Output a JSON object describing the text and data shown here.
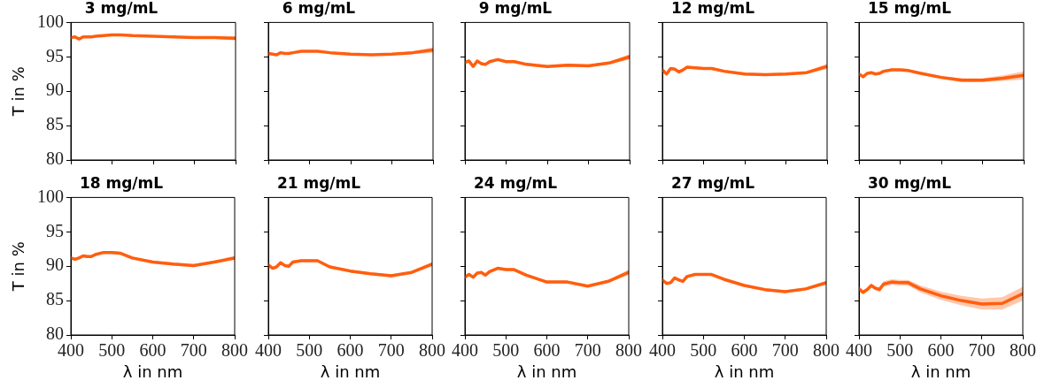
{
  "chart_data": [
    {
      "type": "line",
      "title": "3 mg/mL",
      "ylabel": "T in %",
      "tick_labels": "y",
      "xlim": [
        400,
        800
      ],
      "ylim": [
        80,
        100
      ],
      "xticks": [
        400,
        500,
        600,
        700,
        800
      ],
      "yticks": [
        80,
        85,
        90,
        95,
        100
      ],
      "x": [
        400,
        410,
        420,
        430,
        440,
        450,
        460,
        480,
        500,
        520,
        550,
        600,
        650,
        700,
        750,
        800
      ],
      "series": [
        {
          "color": "#ff5f0f",
          "values": [
            97.8,
            97.9,
            97.6,
            97.9,
            97.9,
            97.9,
            98.0,
            98.1,
            98.2,
            98.2,
            98.1,
            98.0,
            97.9,
            97.8,
            97.8,
            97.7
          ],
          "lower": [
            97.7,
            97.8,
            97.5,
            97.8,
            97.8,
            97.8,
            97.9,
            98.0,
            98.1,
            98.1,
            98.0,
            97.9,
            97.8,
            97.7,
            97.6,
            97.4
          ],
          "upper": [
            97.9,
            98.0,
            97.7,
            98.0,
            98.0,
            98.0,
            98.1,
            98.2,
            98.3,
            98.3,
            98.2,
            98.1,
            98.0,
            97.9,
            98.0,
            98.0
          ]
        }
      ]
    },
    {
      "type": "line",
      "title": "6 mg/mL",
      "tick_labels": false,
      "xlim": [
        400,
        800
      ],
      "ylim": [
        80,
        100
      ],
      "xticks": [
        400,
        500,
        600,
        700,
        800
      ],
      "yticks": [
        80,
        85,
        90,
        95,
        100
      ],
      "x": [
        400,
        410,
        420,
        430,
        440,
        450,
        460,
        480,
        500,
        520,
        550,
        600,
        650,
        700,
        750,
        800
      ],
      "series": [
        {
          "color": "#ff5f0f",
          "values": [
            95.5,
            95.4,
            95.3,
            95.6,
            95.5,
            95.5,
            95.6,
            95.8,
            95.8,
            95.8,
            95.6,
            95.4,
            95.3,
            95.4,
            95.6,
            96.0
          ],
          "lower": [
            95.4,
            95.3,
            95.2,
            95.5,
            95.4,
            95.4,
            95.5,
            95.7,
            95.7,
            95.7,
            95.5,
            95.3,
            95.2,
            95.3,
            95.4,
            95.6
          ],
          "upper": [
            95.6,
            95.5,
            95.4,
            95.7,
            95.6,
            95.6,
            95.7,
            95.9,
            95.9,
            95.9,
            95.7,
            95.5,
            95.4,
            95.5,
            95.8,
            96.4
          ]
        }
      ]
    },
    {
      "type": "line",
      "title": "9 mg/mL",
      "tick_labels": false,
      "xlim": [
        400,
        800
      ],
      "ylim": [
        80,
        100
      ],
      "xticks": [
        400,
        500,
        600,
        700,
        800
      ],
      "yticks": [
        80,
        85,
        90,
        95,
        100
      ],
      "x": [
        400,
        410,
        420,
        430,
        440,
        450,
        460,
        480,
        500,
        520,
        550,
        600,
        650,
        700,
        750,
        800
      ],
      "series": [
        {
          "color": "#ff5f0f",
          "values": [
            94.2,
            94.4,
            93.6,
            94.4,
            94.0,
            93.9,
            94.3,
            94.6,
            94.3,
            94.3,
            93.9,
            93.6,
            93.8,
            93.7,
            94.1,
            95.0
          ],
          "lower": [
            94.0,
            94.2,
            93.4,
            94.2,
            93.8,
            93.7,
            94.1,
            94.4,
            94.1,
            94.1,
            93.7,
            93.4,
            93.6,
            93.5,
            93.9,
            94.6
          ],
          "upper": [
            94.4,
            94.6,
            93.8,
            94.6,
            94.2,
            94.1,
            94.5,
            94.8,
            94.5,
            94.5,
            94.1,
            93.8,
            94.0,
            93.9,
            94.3,
            95.4
          ]
        }
      ]
    },
    {
      "type": "line",
      "title": "12 mg/mL",
      "tick_labels": false,
      "xlim": [
        400,
        800
      ],
      "ylim": [
        80,
        100
      ],
      "xticks": [
        400,
        500,
        600,
        700,
        800
      ],
      "yticks": [
        80,
        85,
        90,
        95,
        100
      ],
      "x": [
        400,
        410,
        420,
        430,
        440,
        450,
        460,
        480,
        500,
        520,
        550,
        600,
        650,
        700,
        750,
        800
      ],
      "series": [
        {
          "color": "#ff5f0f",
          "values": [
            93.1,
            92.5,
            93.3,
            93.2,
            92.8,
            93.1,
            93.5,
            93.4,
            93.3,
            93.3,
            92.9,
            92.5,
            92.4,
            92.5,
            92.7,
            93.6
          ],
          "lower": [
            92.9,
            92.3,
            93.1,
            93.0,
            92.6,
            92.9,
            93.3,
            93.2,
            93.1,
            93.1,
            92.7,
            92.3,
            92.2,
            92.3,
            92.5,
            93.2
          ],
          "upper": [
            93.3,
            92.7,
            93.5,
            93.4,
            93.0,
            93.3,
            93.7,
            93.6,
            93.5,
            93.5,
            93.1,
            92.7,
            92.6,
            92.7,
            92.9,
            94.0
          ]
        }
      ]
    },
    {
      "type": "line",
      "title": "15 mg/mL",
      "tick_labels": false,
      "xlim": [
        400,
        800
      ],
      "ylim": [
        80,
        100
      ],
      "xticks": [
        400,
        500,
        600,
        700,
        800
      ],
      "yticks": [
        80,
        85,
        90,
        95,
        100
      ],
      "x": [
        400,
        410,
        420,
        430,
        440,
        450,
        460,
        480,
        500,
        520,
        550,
        600,
        650,
        700,
        750,
        800
      ],
      "series": [
        {
          "color": "#ff5f0f",
          "values": [
            92.5,
            92.1,
            92.6,
            92.7,
            92.5,
            92.6,
            92.9,
            93.1,
            93.1,
            93.0,
            92.6,
            92.0,
            91.6,
            91.6,
            91.9,
            92.3
          ],
          "lower": [
            92.3,
            91.9,
            92.4,
            92.5,
            92.3,
            92.4,
            92.7,
            92.9,
            92.9,
            92.8,
            92.4,
            91.8,
            91.3,
            91.3,
            91.5,
            91.7
          ],
          "upper": [
            92.7,
            92.3,
            92.8,
            92.9,
            92.7,
            92.8,
            93.1,
            93.3,
            93.3,
            93.2,
            92.8,
            92.2,
            91.9,
            91.9,
            92.3,
            92.9
          ]
        }
      ]
    },
    {
      "type": "line",
      "title": "18 mg/mL",
      "xlabel": "λ in nm",
      "ylabel": "T in %",
      "xlim": [
        400,
        800
      ],
      "ylim": [
        80,
        100
      ],
      "xticks": [
        400,
        500,
        600,
        700,
        800
      ],
      "yticks": [
        80,
        85,
        90,
        95,
        100
      ],
      "x": [
        400,
        410,
        420,
        430,
        440,
        450,
        460,
        480,
        500,
        520,
        550,
        600,
        650,
        700,
        750,
        800
      ],
      "series": [
        {
          "color": "#ff5f0f",
          "values": [
            91.2,
            91.0,
            91.2,
            91.5,
            91.4,
            91.4,
            91.7,
            92.0,
            92.0,
            91.9,
            91.2,
            90.6,
            90.3,
            90.1,
            90.6,
            91.2
          ],
          "lower": [
            91.0,
            90.8,
            91.0,
            91.3,
            91.2,
            91.2,
            91.5,
            91.8,
            91.8,
            91.7,
            91.0,
            90.4,
            90.1,
            89.9,
            90.4,
            90.9
          ],
          "upper": [
            91.4,
            91.2,
            91.4,
            91.7,
            91.6,
            91.6,
            91.9,
            92.2,
            92.2,
            92.1,
            91.4,
            90.8,
            90.5,
            90.3,
            90.8,
            91.5
          ]
        }
      ]
    },
    {
      "type": "line",
      "title": "21 mg/mL",
      "xlabel": "λ in nm",
      "tick_labels": "x",
      "xlim": [
        400,
        800
      ],
      "ylim": [
        80,
        100
      ],
      "xticks": [
        400,
        500,
        600,
        700,
        800
      ],
      "yticks": [
        80,
        85,
        90,
        95,
        100
      ],
      "x": [
        400,
        410,
        420,
        430,
        440,
        450,
        460,
        480,
        500,
        520,
        550,
        600,
        650,
        700,
        750,
        800
      ],
      "series": [
        {
          "color": "#ff5f0f",
          "values": [
            90.2,
            89.7,
            89.9,
            90.5,
            90.1,
            90.0,
            90.6,
            90.8,
            90.8,
            90.8,
            89.9,
            89.3,
            88.9,
            88.6,
            89.1,
            90.3
          ],
          "lower": [
            90.0,
            89.5,
            89.7,
            90.3,
            89.9,
            89.8,
            90.4,
            90.6,
            90.6,
            90.6,
            89.7,
            89.1,
            88.7,
            88.4,
            88.9,
            90.0
          ],
          "upper": [
            90.4,
            89.9,
            90.1,
            90.7,
            90.3,
            90.2,
            90.8,
            91.0,
            91.0,
            91.0,
            90.1,
            89.5,
            89.1,
            88.8,
            89.3,
            90.6
          ]
        }
      ]
    },
    {
      "type": "line",
      "title": "24 mg/mL",
      "xlabel": "λ in nm",
      "tick_labels": "x",
      "xlim": [
        400,
        800
      ],
      "ylim": [
        80,
        100
      ],
      "xticks": [
        400,
        500,
        600,
        700,
        800
      ],
      "yticks": [
        80,
        85,
        90,
        95,
        100
      ],
      "x": [
        400,
        410,
        420,
        430,
        440,
        450,
        460,
        480,
        500,
        520,
        550,
        600,
        650,
        700,
        750,
        800
      ],
      "series": [
        {
          "color": "#ff5f0f",
          "values": [
            88.4,
            88.8,
            88.4,
            89.0,
            89.1,
            88.7,
            89.2,
            89.7,
            89.5,
            89.5,
            88.7,
            87.7,
            87.7,
            87.1,
            87.8,
            89.1
          ],
          "lower": [
            88.2,
            88.6,
            88.2,
            88.8,
            88.9,
            88.5,
            89.0,
            89.5,
            89.3,
            89.3,
            88.5,
            87.5,
            87.5,
            86.9,
            87.6,
            88.7
          ],
          "upper": [
            88.6,
            89.0,
            88.6,
            89.2,
            89.3,
            88.9,
            89.4,
            89.9,
            89.7,
            89.7,
            88.9,
            87.9,
            87.9,
            87.3,
            88.0,
            89.5
          ]
        }
      ]
    },
    {
      "type": "line",
      "title": "27 mg/mL",
      "xlabel": "λ in nm",
      "tick_labels": "x",
      "xlim": [
        400,
        800
      ],
      "ylim": [
        80,
        100
      ],
      "xticks": [
        400,
        500,
        600,
        700,
        800
      ],
      "yticks": [
        80,
        85,
        90,
        95,
        100
      ],
      "x": [
        400,
        410,
        420,
        430,
        440,
        450,
        460,
        480,
        500,
        520,
        550,
        600,
        650,
        700,
        750,
        800
      ],
      "series": [
        {
          "color": "#ff5f0f",
          "values": [
            88.0,
            87.5,
            87.6,
            88.3,
            88.0,
            87.8,
            88.5,
            88.8,
            88.8,
            88.8,
            88.1,
            87.2,
            86.6,
            86.3,
            86.7,
            87.6
          ],
          "lower": [
            87.8,
            87.3,
            87.4,
            88.1,
            87.8,
            87.6,
            88.3,
            88.6,
            88.6,
            88.6,
            87.9,
            87.0,
            86.4,
            86.1,
            86.5,
            87.3
          ],
          "upper": [
            88.2,
            87.7,
            87.8,
            88.5,
            88.2,
            88.0,
            88.7,
            89.0,
            89.0,
            89.0,
            88.3,
            87.4,
            86.8,
            86.5,
            86.9,
            87.9
          ]
        }
      ]
    },
    {
      "type": "line",
      "title": "30 mg/mL",
      "xlabel": "λ in nm",
      "tick_labels": "x",
      "xlim": [
        400,
        800
      ],
      "ylim": [
        80,
        100
      ],
      "xticks": [
        400,
        500,
        600,
        700,
        800
      ],
      "yticks": [
        80,
        85,
        90,
        95,
        100
      ],
      "x": [
        400,
        410,
        420,
        430,
        440,
        450,
        460,
        480,
        500,
        520,
        550,
        600,
        650,
        700,
        750,
        800
      ],
      "series": [
        {
          "color": "#ff5f0f",
          "values": [
            86.7,
            86.2,
            86.6,
            87.2,
            86.8,
            86.6,
            87.4,
            87.7,
            87.6,
            87.6,
            86.7,
            85.7,
            85.0,
            84.5,
            84.6,
            86.0
          ],
          "lower": [
            86.4,
            85.9,
            86.3,
            86.9,
            86.5,
            86.3,
            87.0,
            87.3,
            87.2,
            87.2,
            86.2,
            85.1,
            84.3,
            83.7,
            83.7,
            85.0
          ],
          "upper": [
            87.0,
            86.5,
            86.9,
            87.5,
            87.1,
            86.9,
            87.8,
            88.1,
            88.0,
            88.0,
            87.2,
            86.3,
            85.7,
            85.3,
            85.5,
            87.0
          ]
        }
      ]
    }
  ]
}
